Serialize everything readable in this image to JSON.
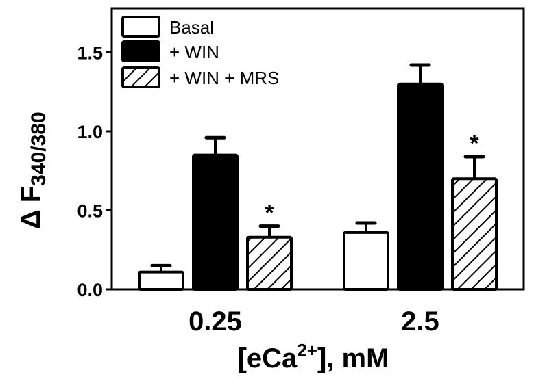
{
  "chart_data": {
    "type": "bar",
    "title": "",
    "xlabel": {
      "prefix": "[eCa",
      "sup": "2+",
      "suffix": "], mM"
    },
    "ylabel": {
      "delta": "Δ",
      "main": "F",
      "sub": "340/380"
    },
    "ylim": [
      0,
      1.72
    ],
    "yticks": [
      "0.0",
      "0.5",
      "1.0",
      "1.5"
    ],
    "ytick_values": [
      0,
      0.5,
      1.0,
      1.5
    ],
    "categories": [
      "0.25",
      "2.5"
    ],
    "legend_position": "top-left",
    "series": [
      {
        "name": "Basal",
        "fill": "white",
        "values": [
          0.11,
          0.36
        ],
        "errors": [
          0.04,
          0.06
        ],
        "significant": [
          false,
          false
        ]
      },
      {
        "name": "+ WIN",
        "fill": "black",
        "values": [
          0.85,
          1.3
        ],
        "errors": [
          0.11,
          0.12
        ],
        "significant": [
          false,
          false
        ]
      },
      {
        "name": "+ WIN + MRS",
        "fill": "hatched",
        "values": [
          0.33,
          0.7
        ],
        "errors": [
          0.07,
          0.14
        ],
        "significant": [
          true,
          true
        ]
      }
    ],
    "significance_marker": "*"
  }
}
